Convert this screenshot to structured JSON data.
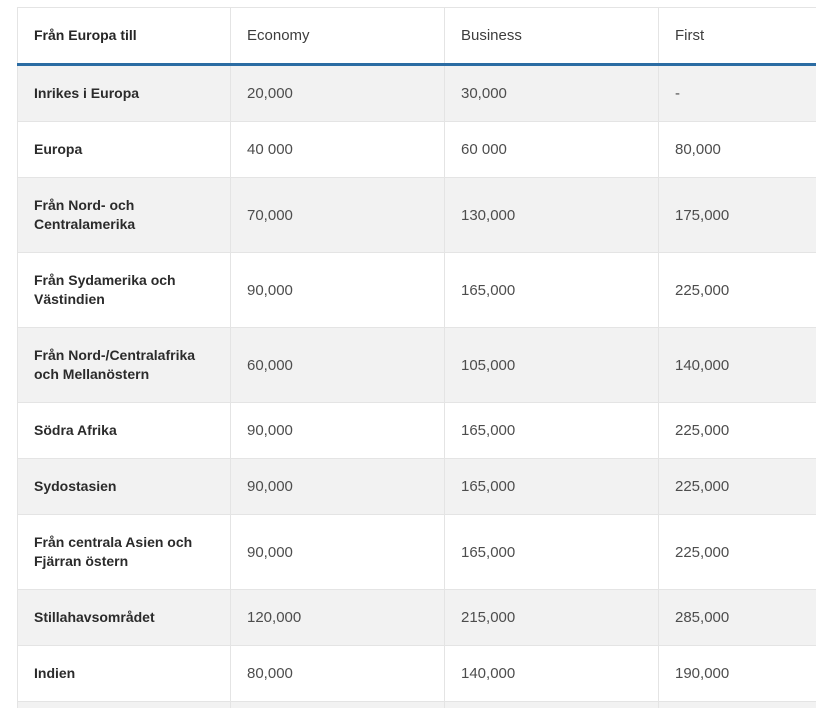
{
  "table": {
    "headers": {
      "destination": "Från Europa till",
      "economy": "Economy",
      "business": "Business",
      "first": "First"
    },
    "rows": [
      {
        "destination": "Inrikes i Europa",
        "economy": "20,000",
        "business": "30,000",
        "first": "-"
      },
      {
        "destination": "Europa",
        "economy": "40 000",
        "business": "60 000",
        "first": "80,000"
      },
      {
        "destination": "Från Nord- och Centralamerika",
        "economy": "70,000",
        "business": "130,000",
        "first": "175,000"
      },
      {
        "destination": "Från Sydamerika och Västindien",
        "economy": "90,000",
        "business": "165,000",
        "first": "225,000"
      },
      {
        "destination": "Från Nord-/Centralafrika och Mellanöstern",
        "economy": "60,000",
        "business": "105,000",
        "first": "140,000"
      },
      {
        "destination": "Södra Afrika",
        "economy": "90,000",
        "business": "165,000",
        "first": "225,000"
      },
      {
        "destination": "Sydostasien",
        "economy": "90,000",
        "business": "165,000",
        "first": "225,000"
      },
      {
        "destination": "Från centrala Asien och Fjärran östern",
        "economy": "90,000",
        "business": "165,000",
        "first": "225,000"
      },
      {
        "destination": "Stillahavsområdet",
        "economy": "120,000",
        "business": "215,000",
        "first": "285,000"
      },
      {
        "destination": "Indien",
        "economy": "80,000",
        "business": "140,000",
        "first": "190,000"
      }
    ],
    "colors": {
      "accent_line": "#2b6ca3",
      "zebra_row": "#f2f2f2",
      "border": "#e4e4e4",
      "label_text": "#2b2b2b",
      "value_text": "#4d4d4d"
    }
  }
}
